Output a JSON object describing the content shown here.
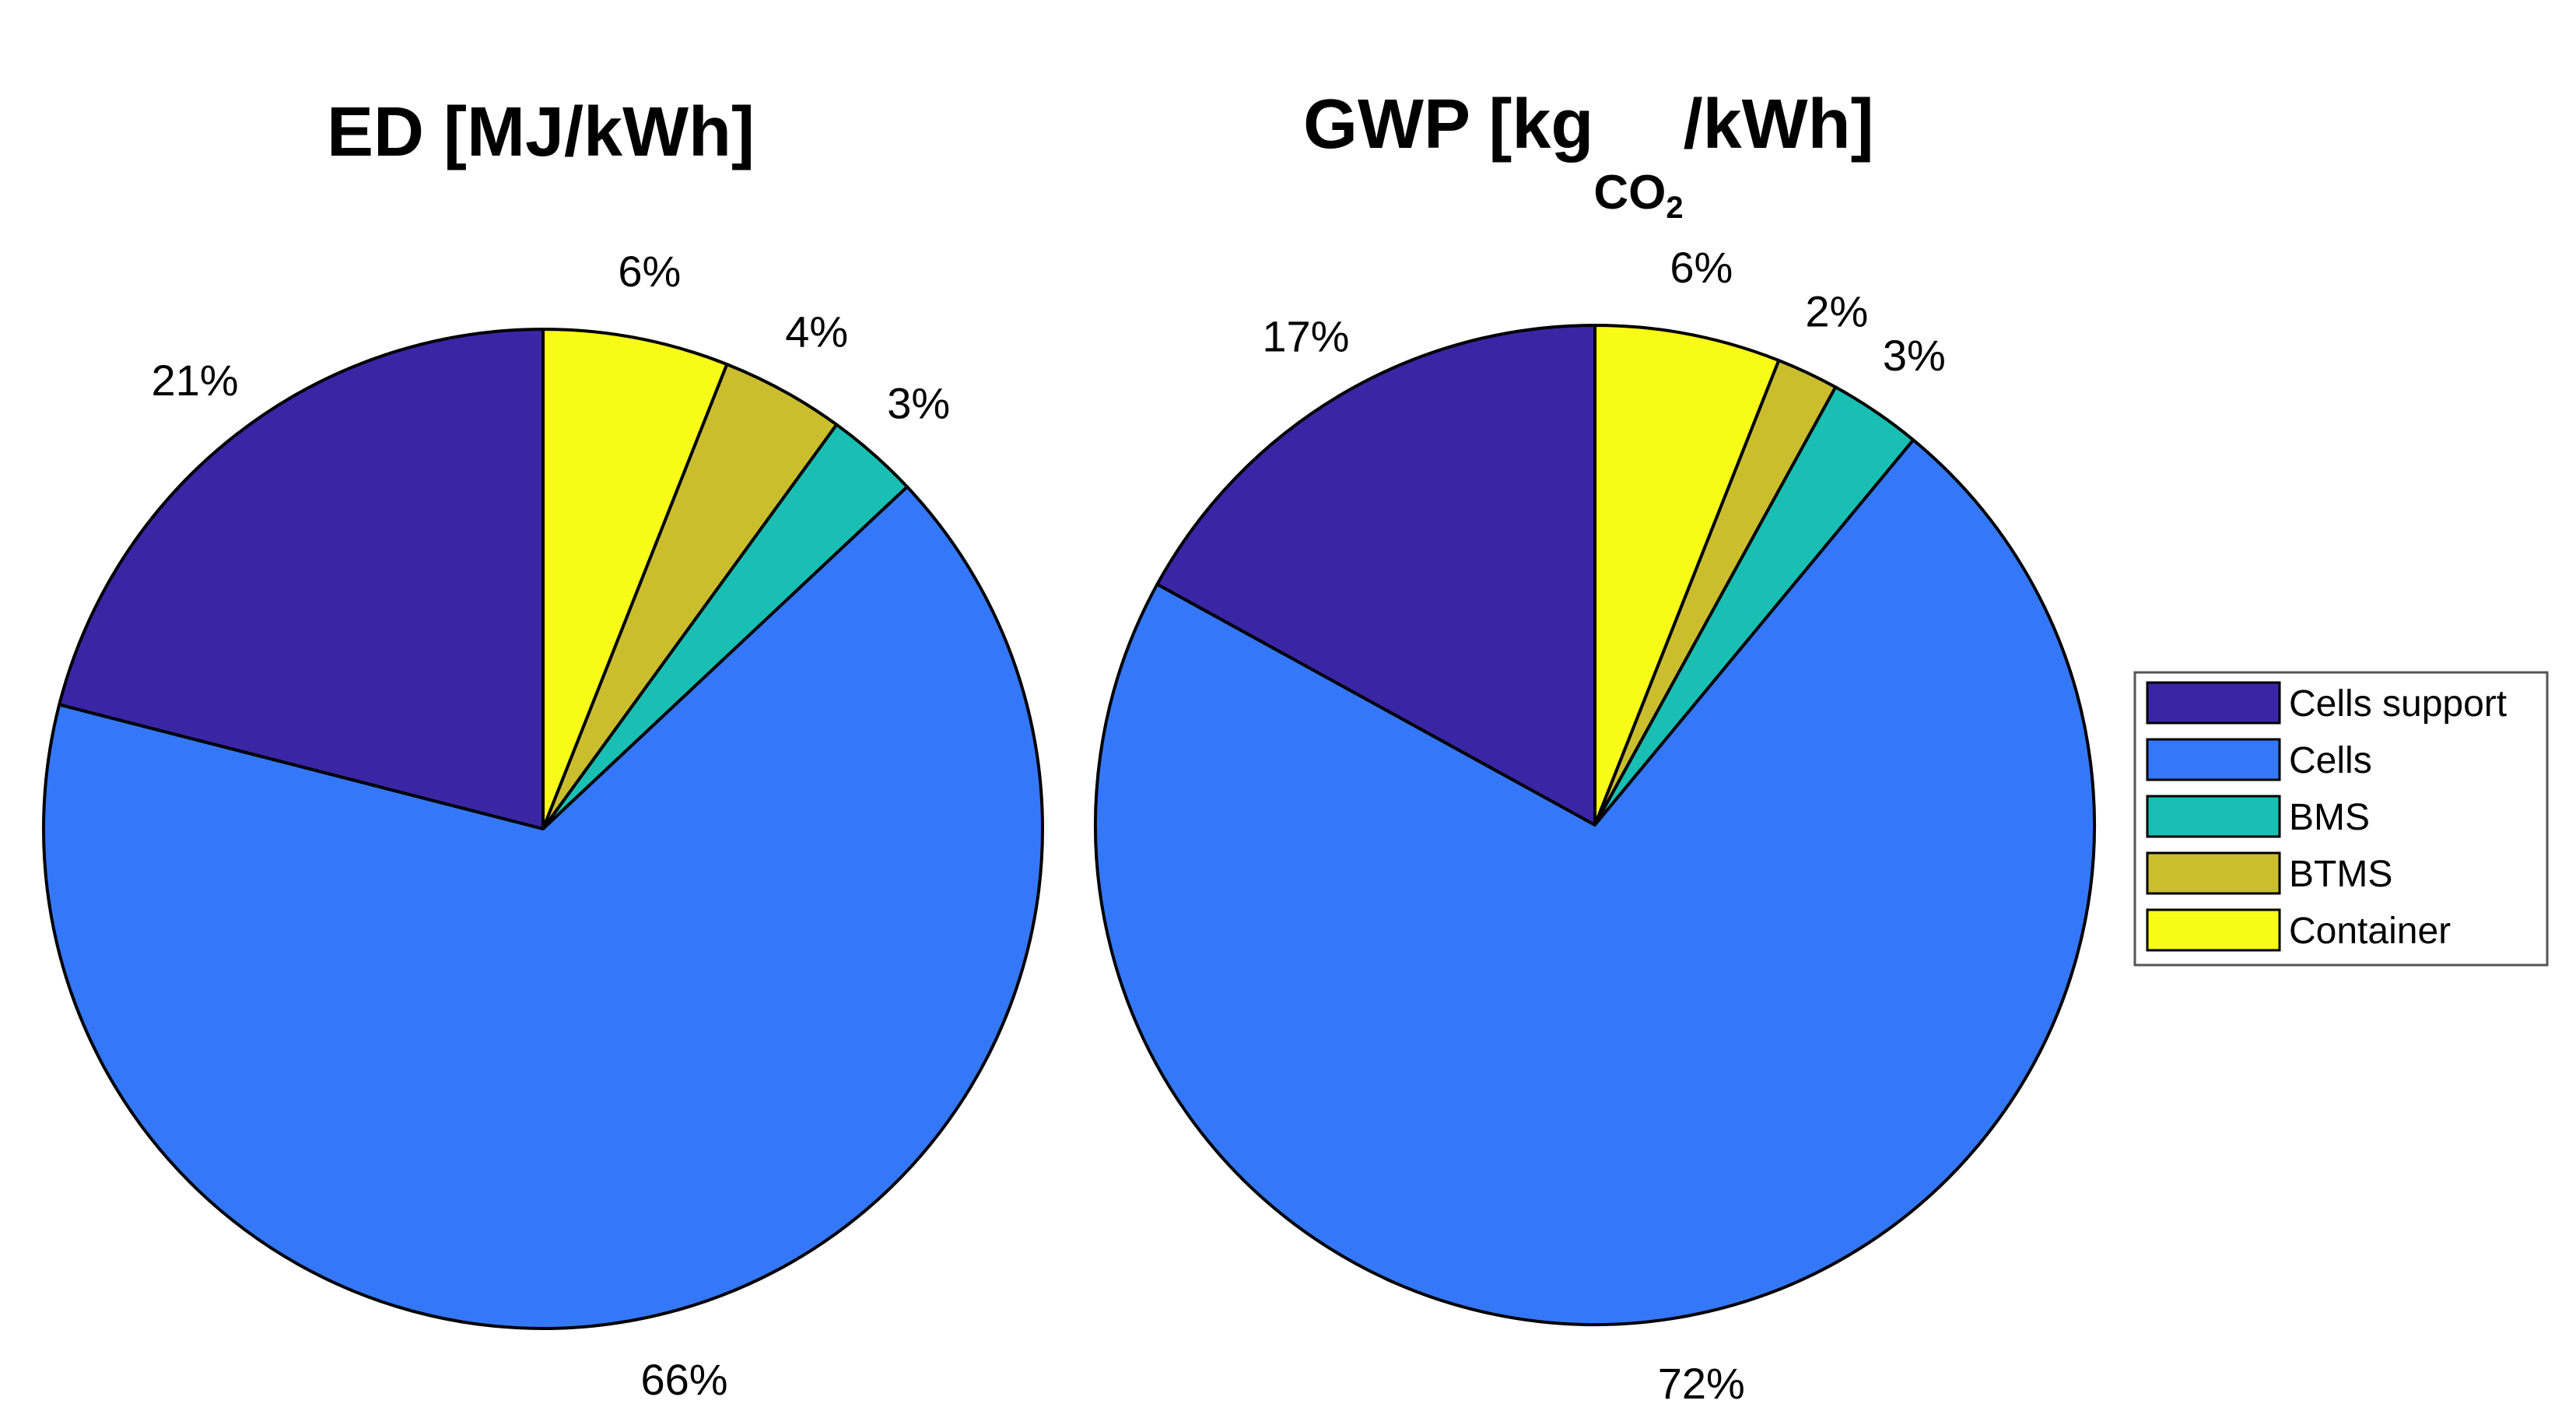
{
  "colors": {
    "Cells support": "#3A25A5",
    "Cells": "#3478F9",
    "BMS": "#19BFB3",
    "BTMS": "#CBBE2E",
    "Container": "#F8FA17"
  },
  "chart_data": [
    {
      "type": "pie",
      "title": "ED [MJ/kWh]",
      "title_parts": {
        "main": "ED [MJ/kWh]"
      },
      "start": "top, clockwise",
      "slices": [
        {
          "name": "Container",
          "value": 6,
          "label": "6%"
        },
        {
          "name": "BTMS",
          "value": 4,
          "label": "4%"
        },
        {
          "name": "BMS",
          "value": 3,
          "label": "3%"
        },
        {
          "name": "Cells",
          "value": 66,
          "label": "66%"
        },
        {
          "name": "Cells support",
          "value": 21,
          "label": "21%"
        }
      ]
    },
    {
      "type": "pie",
      "title": "GWP [kgCO2/kWh]",
      "title_parts": {
        "pre": "GWP [kg",
        "sub": "CO",
        "subsub": "2",
        "post": "/kWh]"
      },
      "start": "top, clockwise",
      "slices": [
        {
          "name": "Container",
          "value": 6,
          "label": "6%"
        },
        {
          "name": "BTMS",
          "value": 2,
          "label": "2%"
        },
        {
          "name": "BMS",
          "value": 3,
          "label": "3%"
        },
        {
          "name": "Cells",
          "value": 72,
          "label": "72%"
        },
        {
          "name": "Cells support",
          "value": 17,
          "label": "17%"
        }
      ]
    }
  ],
  "legend": {
    "position": "right",
    "items": [
      "Cells support",
      "Cells",
      "BMS",
      "BTMS",
      "Container"
    ]
  }
}
